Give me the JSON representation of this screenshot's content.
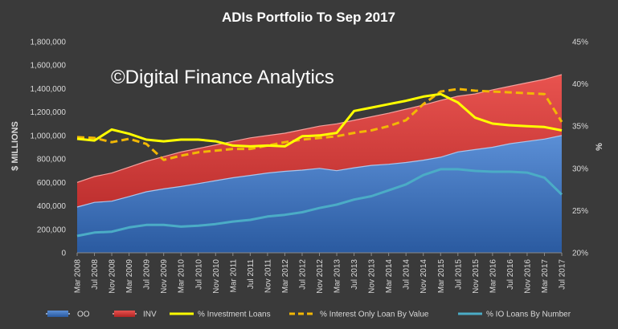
{
  "chart_data": {
    "type": "area",
    "title": "ADIs Portfolio To Sep 2017",
    "watermark": "©Digital Finance Analytics",
    "ylabel_left": "$ MILLIONS",
    "ylabel_right": "%",
    "ylim_left": [
      0,
      1800000
    ],
    "ylim_right": [
      20,
      45
    ],
    "yticks_left": [
      "0",
      "200,000",
      "400,000",
      "600,000",
      "800,000",
      "1,000,000",
      "1,200,000",
      "1,400,000",
      "1,600,000",
      "1,800,000"
    ],
    "yticks_right": [
      "20%",
      "25%",
      "30%",
      "35%",
      "40%",
      "45%"
    ],
    "x_labels": [
      "Mar 2008",
      "Jul 2008",
      "Nov 2008",
      "Mar 2009",
      "Jul 2009",
      "Nov 2009",
      "Mar 2010",
      "Jul 2010",
      "Nov 2010",
      "Mar 2011",
      "Jul 2011",
      "Nov 2011",
      "Mar 2012",
      "Jul 2012",
      "Nov 2012",
      "Mar 2013",
      "Jul 2013",
      "Nov 2013",
      "Mar 2014",
      "Jul 2014",
      "Nov 2014",
      "Mar 2015",
      "Jul 2015",
      "Nov 2015",
      "Mar 2016",
      "Jul 2016",
      "Nov 2016",
      "Mar 2017",
      "Jul 2017"
    ],
    "legend_position": "bottom",
    "grid": false,
    "colors": {
      "oo": "#4f81bd",
      "inv": "#e03c3c",
      "inv_line": "#ffffff",
      "investment_loans": "#ffff00",
      "io_by_value": "#f2b705",
      "io_by_number": "#4bacc6"
    },
    "series": [
      {
        "name": "OO",
        "key": "oo",
        "axis": "left",
        "values": [
          390000,
          430000,
          440000,
          480000,
          520000,
          545000,
          565000,
          590000,
          615000,
          640000,
          660000,
          680000,
          695000,
          705000,
          720000,
          700000,
          725000,
          745000,
          755000,
          770000,
          790000,
          815000,
          860000,
          880000,
          900000,
          930000,
          950000,
          970000,
          1000000
        ]
      },
      {
        "name": "INV",
        "key": "inv",
        "axis": "left",
        "values": [
          600000,
          650000,
          680000,
          730000,
          780000,
          820000,
          860000,
          890000,
          920000,
          950000,
          980000,
          1000000,
          1020000,
          1050000,
          1080000,
          1100000,
          1130000,
          1160000,
          1190000,
          1225000,
          1260000,
          1300000,
          1335000,
          1355000,
          1390000,
          1420000,
          1450000,
          1480000,
          1520000
        ]
      },
      {
        "name": "% Investment Loans",
        "key": "investment_loans",
        "axis": "right",
        "values": [
          33.5,
          33.3,
          34.6,
          34.1,
          33.4,
          33.2,
          33.4,
          33.4,
          33.2,
          32.7,
          32.6,
          32.7,
          32.6,
          33.8,
          33.9,
          34.2,
          36.8,
          37.2,
          37.6,
          38.0,
          38.5,
          38.8,
          37.8,
          36.0,
          35.3,
          35.1,
          35.0,
          34.9,
          34.5
        ]
      },
      {
        "name": "% Interest Only Loan By Value",
        "key": "io_by_value",
        "axis": "right",
        "values": [
          33.7,
          33.6,
          33.1,
          33.5,
          32.9,
          31.0,
          31.5,
          31.9,
          32.1,
          32.3,
          32.3,
          32.7,
          33.1,
          33.4,
          33.6,
          33.8,
          34.2,
          34.5,
          35.0,
          35.7,
          37.6,
          39.1,
          39.4,
          39.2,
          39.1,
          39.0,
          38.9,
          38.8,
          35.5
        ]
      },
      {
        "name": "% IO Loans By Number",
        "key": "io_by_number",
        "axis": "right",
        "values": [
          22.0,
          22.4,
          22.5,
          23.0,
          23.3,
          23.3,
          23.1,
          23.2,
          23.4,
          23.7,
          23.9,
          24.3,
          24.5,
          24.8,
          25.3,
          25.7,
          26.3,
          26.7,
          27.4,
          28.1,
          29.2,
          29.9,
          29.9,
          29.7,
          29.6,
          29.6,
          29.5,
          28.9,
          26.9
        ]
      }
    ]
  }
}
